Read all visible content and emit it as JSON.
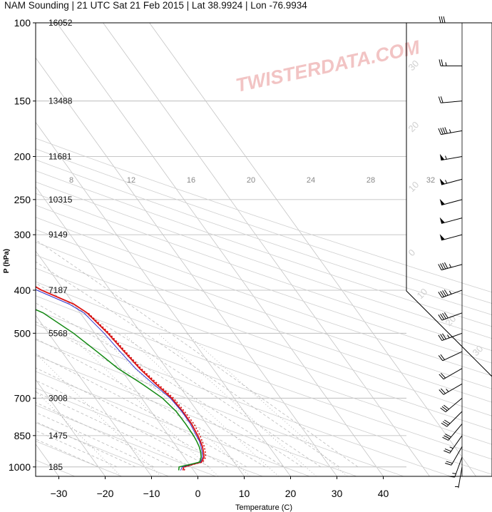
{
  "chart_data": {
    "type": "line",
    "chart_kind": "Skew-T log-P sounding",
    "title": "NAM Sounding | 21 UTC Sat 21 Feb 2015 | Lat 38.9924 | Lon -76.9934",
    "xlabel": "Temperature (C)",
    "ylabel": "P (hPa)",
    "watermark": "TWISTERDATA.COM",
    "xlim": [
      -35,
      45
    ],
    "ylim": [
      1050,
      100
    ],
    "y_scale": "log",
    "x_ticks": [
      "−30",
      "−20",
      "−10",
      "0",
      "10",
      "20",
      "30",
      "40"
    ],
    "pressure_levels": [
      {
        "p": 100,
        "label": "100",
        "height": "16052"
      },
      {
        "p": 150,
        "label": "150",
        "height": "13488"
      },
      {
        "p": 200,
        "label": "200",
        "height": "11681"
      },
      {
        "p": 250,
        "label": "250",
        "height": "10315"
      },
      {
        "p": 300,
        "label": "300",
        "height": "9149"
      },
      {
        "p": 400,
        "label": "400",
        "height": "7187"
      },
      {
        "p": 500,
        "label": "500",
        "height": "5568"
      },
      {
        "p": 700,
        "label": "700",
        "height": "3008"
      },
      {
        "p": 850,
        "label": "850",
        "height": "1475"
      },
      {
        "p": 1000,
        "label": "1000",
        "height": "185"
      }
    ],
    "mixing_ratio_labels": [
      "8",
      "12",
      "16",
      "20",
      "24",
      "28",
      "32"
    ],
    "grid": true,
    "series": [
      {
        "name": "",
        "role": "temperature",
        "color": "#dd1111",
        "points": [
          [
            1018,
            -2.3
          ],
          [
            1000,
            -1.6
          ],
          [
            985,
            1.0
          ],
          [
            975,
            3.0
          ],
          [
            950,
            4.3
          ],
          [
            925,
            5.0
          ],
          [
            900,
            5.6
          ],
          [
            875,
            6.0
          ],
          [
            850,
            6.3
          ],
          [
            800,
            6.8
          ],
          [
            750,
            6.8
          ],
          [
            700,
            6.5
          ],
          [
            650,
            5.3
          ],
          [
            600,
            4.2
          ],
          [
            550,
            3.5
          ],
          [
            500,
            2.8
          ],
          [
            450,
            1.5
          ],
          [
            430,
            0.0
          ],
          [
            400,
            -4.8
          ],
          [
            350,
            -10.5
          ],
          [
            300,
            -17.5
          ],
          [
            250,
            -24.5
          ],
          [
            230,
            -27.0
          ],
          [
            200,
            -20.0
          ],
          [
            175,
            -11.0
          ],
          [
            150,
            -3.0
          ],
          [
            125,
            5.0
          ],
          [
            100,
            19.0
          ]
        ]
      },
      {
        "name": "",
        "role": "virtual temperature",
        "color": "#cc0000",
        "dash": true,
        "points": [
          [
            1018,
            -2.0
          ],
          [
            1000,
            -1.3
          ],
          [
            985,
            1.3
          ],
          [
            975,
            3.3
          ],
          [
            950,
            4.7
          ],
          [
            925,
            5.4
          ],
          [
            900,
            6.0
          ],
          [
            875,
            6.4
          ],
          [
            850,
            6.8
          ],
          [
            800,
            7.3
          ],
          [
            750,
            7.2
          ],
          [
            700,
            6.9
          ],
          [
            650,
            5.7
          ],
          [
            600,
            4.5
          ],
          [
            550,
            3.8
          ],
          [
            500,
            3.1
          ],
          [
            450,
            1.7
          ]
        ]
      },
      {
        "name": "",
        "role": "parcel",
        "color": "#3333cc",
        "points": [
          [
            1018,
            -2.8
          ],
          [
            1000,
            -1.9
          ],
          [
            985,
            0.8
          ],
          [
            975,
            2.8
          ],
          [
            950,
            4.0
          ],
          [
            925,
            4.7
          ],
          [
            900,
            5.3
          ],
          [
            875,
            5.8
          ],
          [
            850,
            6.0
          ],
          [
            800,
            6.5
          ],
          [
            750,
            6.6
          ],
          [
            700,
            6.2
          ],
          [
            650,
            4.7
          ],
          [
            600,
            3.3
          ],
          [
            550,
            2.6
          ],
          [
            500,
            2.0
          ],
          [
            450,
            0.8
          ],
          [
            430,
            -1.0
          ],
          [
            400,
            -5.8
          ],
          [
            350,
            -11.5
          ],
          [
            300,
            -18.5
          ],
          [
            250,
            -25.5
          ],
          [
            230,
            -27.6
          ],
          [
            200,
            -20.8
          ],
          [
            175,
            -11.8
          ],
          [
            150,
            -4.5
          ],
          [
            125,
            3.0
          ],
          [
            100,
            17.0
          ]
        ]
      },
      {
        "name": "",
        "role": "dewpoint",
        "color": "#118811",
        "points": [
          [
            1018,
            -3.2
          ],
          [
            1000,
            -2.6
          ],
          [
            985,
            0.6
          ],
          [
            975,
            2.6
          ],
          [
            950,
            3.7
          ],
          [
            925,
            4.4
          ],
          [
            900,
            4.9
          ],
          [
            875,
            5.2
          ],
          [
            850,
            5.4
          ],
          [
            800,
            5.5
          ],
          [
            750,
            5.4
          ],
          [
            700,
            4.5
          ],
          [
            650,
            2.3
          ],
          [
            600,
            -0.5
          ],
          [
            550,
            -2.4
          ],
          [
            500,
            -4.6
          ],
          [
            450,
            -8.0
          ],
          [
            420,
            -12.5
          ],
          [
            400,
            -17.0
          ],
          [
            350,
            -25.0
          ],
          [
            300,
            -33.0
          ],
          [
            250,
            -42.0
          ],
          [
            220,
            -44.5
          ],
          [
            200,
            -47.5
          ],
          [
            180,
            -52.0
          ],
          [
            170,
            -58.0
          ],
          [
            150,
            -66.0
          ],
          [
            130,
            -73.0
          ],
          [
            120,
            -70.0
          ],
          [
            110,
            -62.0
          ],
          [
            100,
            -56.0
          ]
        ]
      }
    ],
    "hodograph_axes_labels": [
      "30",
      "20",
      "10",
      "0",
      "10",
      "20",
      "30"
    ],
    "wind_barbs": [
      {
        "p": 100,
        "dir": 270,
        "speed": 30
      },
      {
        "p": 125,
        "dir": 270,
        "speed": 25
      },
      {
        "p": 150,
        "dir": 265,
        "speed": 20
      },
      {
        "p": 175,
        "dir": 260,
        "speed": 45
      },
      {
        "p": 200,
        "dir": 260,
        "speed": 55
      },
      {
        "p": 225,
        "dir": 255,
        "speed": 55
      },
      {
        "p": 250,
        "dir": 255,
        "speed": 50
      },
      {
        "p": 275,
        "dir": 255,
        "speed": 50
      },
      {
        "p": 300,
        "dir": 255,
        "speed": 50
      },
      {
        "p": 350,
        "dir": 255,
        "speed": 45
      },
      {
        "p": 400,
        "dir": 250,
        "speed": 45
      },
      {
        "p": 450,
        "dir": 250,
        "speed": 40
      },
      {
        "p": 500,
        "dir": 250,
        "speed": 35
      },
      {
        "p": 550,
        "dir": 245,
        "speed": 20
      },
      {
        "p": 600,
        "dir": 240,
        "speed": 20
      },
      {
        "p": 650,
        "dir": 240,
        "speed": 25
      },
      {
        "p": 700,
        "dir": 230,
        "speed": 30
      },
      {
        "p": 750,
        "dir": 225,
        "speed": 30
      },
      {
        "p": 800,
        "dir": 220,
        "speed": 30
      },
      {
        "p": 850,
        "dir": 215,
        "speed": 25
      },
      {
        "p": 900,
        "dir": 210,
        "speed": 20
      },
      {
        "p": 950,
        "dir": 200,
        "speed": 15
      },
      {
        "p": 1000,
        "dir": 190,
        "speed": 5
      }
    ]
  }
}
